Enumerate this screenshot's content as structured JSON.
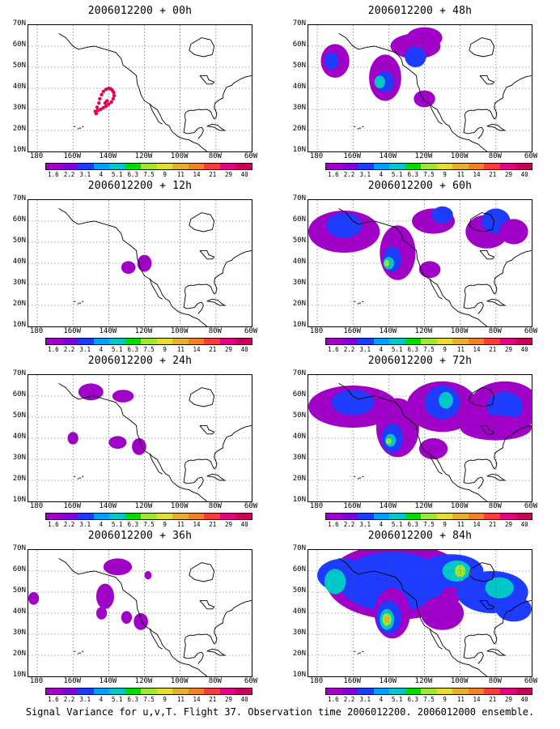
{
  "legend": {
    "labels": [
      "1.6",
      "2.2",
      "3.1",
      "4",
      "5.1",
      "6.3",
      "7.5",
      "9",
      "11",
      "14",
      "21",
      "29",
      "40"
    ],
    "colors": [
      "#a000c8",
      "#8200dc",
      "#1e3cff",
      "#00a0ff",
      "#00c8c8",
      "#00dc00",
      "#a0e632",
      "#e6dc32",
      "#e6af2d",
      "#f08228",
      "#fa3c3c",
      "#e60082",
      "#c8005a"
    ]
  },
  "axes": {
    "y_ticks": [
      "70N",
      "60N",
      "50N",
      "40N",
      "30N",
      "20N",
      "10N"
    ],
    "x_ticks": [
      "180",
      "160W",
      "140W",
      "120W",
      "100W",
      "80W",
      "60W"
    ]
  },
  "panels": [
    {
      "title": "2006012200 + 00h"
    },
    {
      "title": "2006012200 + 48h"
    },
    {
      "title": "2006012200 + 12h"
    },
    {
      "title": "2006012200 + 60h"
    },
    {
      "title": "2006012200 + 24h"
    },
    {
      "title": "2006012200 + 72h"
    },
    {
      "title": "2006012200 + 36h"
    },
    {
      "title": "2006012200 + 84h"
    }
  ],
  "footer": "Signal Variance for u,v,T. Flight 37. Observation time 2006012200. 2006012000 ensemble."
}
